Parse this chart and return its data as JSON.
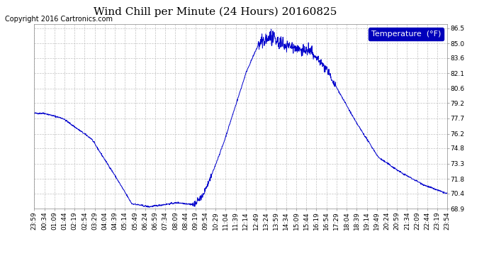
{
  "title": "Wind Chill per Minute (24 Hours) 20160825",
  "copyright": "Copyright 2016 Cartronics.com",
  "legend_label": "Temperature  (°F)",
  "line_color": "#0000cc",
  "bg_color": "#ffffff",
  "grid_color": "#bbbbbb",
  "ylim": [
    68.9,
    86.9
  ],
  "yticks": [
    68.9,
    70.4,
    71.8,
    73.3,
    74.8,
    76.2,
    77.7,
    79.2,
    80.6,
    82.1,
    83.6,
    85.0,
    86.5
  ],
  "x_tick_labels": [
    "23:59",
    "00:34",
    "01:09",
    "01:44",
    "02:19",
    "02:54",
    "03:29",
    "04:04",
    "04:39",
    "05:14",
    "05:49",
    "06:24",
    "06:59",
    "07:34",
    "08:09",
    "08:44",
    "09:19",
    "09:54",
    "10:29",
    "11:04",
    "11:39",
    "12:14",
    "12:49",
    "13:24",
    "13:59",
    "14:34",
    "15:09",
    "15:44",
    "16:19",
    "16:54",
    "17:29",
    "18:04",
    "18:39",
    "19:14",
    "19:49",
    "20:24",
    "20:59",
    "21:34",
    "22:09",
    "22:44",
    "23:19",
    "23:54"
  ],
  "title_fontsize": 11,
  "copyright_fontsize": 7,
  "tick_fontsize": 6.5,
  "legend_fontsize": 8
}
